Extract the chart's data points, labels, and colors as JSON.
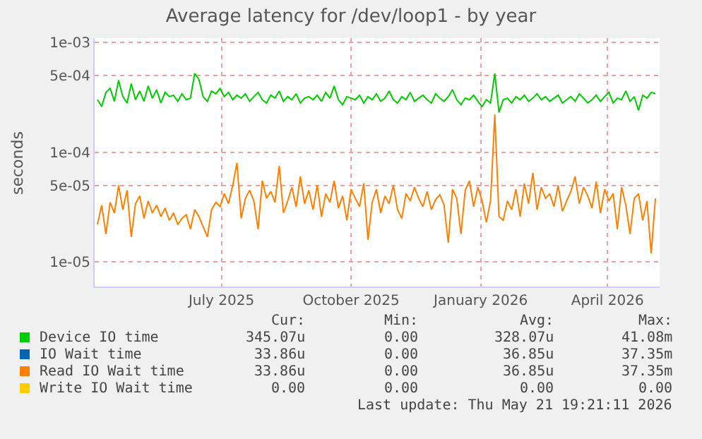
{
  "chart_data": {
    "type": "line",
    "title": "Average latency for /dev/loop1 - by year",
    "ylabel": "seconds",
    "log": "y",
    "grid": true,
    "legend": "bottom",
    "marker": "none",
    "line_style": "solid",
    "xlim": [
      "2025-04-02",
      "2026-05-08"
    ],
    "xticks": [
      {
        "value": "2025-07-01",
        "label": "July 2025"
      },
      {
        "value": "2025-10-01",
        "label": "October 2025"
      },
      {
        "value": "2026-01-01",
        "label": "January 2026"
      },
      {
        "value": "2026-04-01",
        "label": "April 2026"
      }
    ],
    "ylim": [
      6e-06,
      0.00109
    ],
    "yticks": [
      {
        "value": 1e-05,
        "label": "1e-05"
      },
      {
        "value": 5e-05,
        "label": "5e-05"
      },
      {
        "value": 0.0001,
        "label": "1e-04"
      },
      {
        "value": 0.0005,
        "label": "5e-04"
      },
      {
        "value": 0.001,
        "label": "1e-03"
      }
    ],
    "x": [
      "2025-04-04",
      "2025-04-07",
      "2025-04-10",
      "2025-04-13",
      "2025-04-16",
      "2025-04-19",
      "2025-04-22",
      "2025-04-25",
      "2025-04-28",
      "2025-05-01",
      "2025-05-04",
      "2025-05-07",
      "2025-05-10",
      "2025-05-13",
      "2025-05-16",
      "2025-05-19",
      "2025-05-22",
      "2025-05-25",
      "2025-05-28",
      "2025-05-31",
      "2025-06-03",
      "2025-06-06",
      "2025-06-09",
      "2025-06-12",
      "2025-06-15",
      "2025-06-18",
      "2025-06-21",
      "2025-06-24",
      "2025-06-27",
      "2025-06-30",
      "2025-07-03",
      "2025-07-06",
      "2025-07-09",
      "2025-07-12",
      "2025-07-15",
      "2025-07-18",
      "2025-07-21",
      "2025-07-24",
      "2025-07-27",
      "2025-07-30",
      "2025-08-02",
      "2025-08-05",
      "2025-08-08",
      "2025-08-11",
      "2025-08-14",
      "2025-08-17",
      "2025-08-20",
      "2025-08-23",
      "2025-08-26",
      "2025-08-29",
      "2025-09-01",
      "2025-09-04",
      "2025-09-07",
      "2025-09-10",
      "2025-09-13",
      "2025-09-16",
      "2025-09-19",
      "2025-09-22",
      "2025-09-25",
      "2025-09-28",
      "2025-10-01",
      "2025-10-04",
      "2025-10-07",
      "2025-10-10",
      "2025-10-13",
      "2025-10-16",
      "2025-10-19",
      "2025-10-22",
      "2025-10-25",
      "2025-10-28",
      "2025-10-31",
      "2025-11-03",
      "2025-11-06",
      "2025-11-09",
      "2025-11-12",
      "2025-11-15",
      "2025-11-18",
      "2025-11-21",
      "2025-11-24",
      "2025-11-27",
      "2025-11-30",
      "2025-12-03",
      "2025-12-06",
      "2025-12-09",
      "2025-12-12",
      "2025-12-15",
      "2025-12-18",
      "2025-12-21",
      "2025-12-24",
      "2025-12-27",
      "2025-12-30",
      "2026-01-02",
      "2026-01-05",
      "2026-01-08",
      "2026-01-11",
      "2026-01-14",
      "2026-01-17",
      "2026-01-20",
      "2026-01-23",
      "2026-01-26",
      "2026-01-29",
      "2026-02-01",
      "2026-02-04",
      "2026-02-07",
      "2026-02-10",
      "2026-02-13",
      "2026-02-16",
      "2026-02-19",
      "2026-02-22",
      "2026-02-25",
      "2026-02-28",
      "2026-03-03",
      "2026-03-06",
      "2026-03-09",
      "2026-03-12",
      "2026-03-15",
      "2026-03-18",
      "2026-03-21",
      "2026-03-24",
      "2026-03-27",
      "2026-03-30",
      "2026-04-02",
      "2026-04-05",
      "2026-04-08",
      "2026-04-11",
      "2026-04-14",
      "2026-04-17",
      "2026-04-20",
      "2026-04-23",
      "2026-04-26",
      "2026-04-29",
      "2026-05-02",
      "2026-05-05"
    ],
    "series": [
      {
        "name": "Device IO time",
        "color": "#00cc00",
        "values": [
          0.0003,
          0.00026,
          0.00035,
          0.00038,
          0.00029,
          0.00045,
          0.00032,
          0.00028,
          0.00042,
          0.0003,
          0.00036,
          0.00029,
          0.0004,
          0.00031,
          0.00037,
          0.00028,
          0.00035,
          0.00032,
          0.00033,
          0.00029,
          0.00034,
          0.0003,
          0.00031,
          0.00052,
          0.00046,
          0.00032,
          0.00029,
          0.00036,
          0.00034,
          0.00038,
          0.00032,
          0.00035,
          0.0003,
          0.00033,
          0.00031,
          0.00034,
          0.00029,
          0.00032,
          0.00035,
          0.0003,
          0.00028,
          0.00033,
          0.00031,
          0.00036,
          0.00029,
          0.00032,
          0.0003,
          0.00034,
          0.00028,
          0.00031,
          0.00032,
          0.0003,
          0.00033,
          0.00029,
          0.00035,
          0.00031,
          0.0004,
          0.0003,
          0.00027,
          0.00032,
          0.00031,
          0.0003,
          0.00033,
          0.00028,
          0.00032,
          0.0003,
          0.00034,
          0.00029,
          0.00031,
          0.00036,
          0.0003,
          0.00028,
          0.00032,
          0.0003,
          0.00035,
          0.00029,
          0.00031,
          0.00033,
          0.0003,
          0.00028,
          0.00034,
          0.00031,
          0.00029,
          0.00032,
          0.00037,
          0.0003,
          0.00027,
          0.00031,
          0.0003,
          0.00033,
          0.00029,
          0.00026,
          0.0003,
          0.00028,
          0.00052,
          0.00023,
          0.0003,
          0.00031,
          0.00028,
          0.00032,
          0.0003,
          0.00033,
          0.00029,
          0.00031,
          0.00034,
          0.0003,
          0.00032,
          0.00029,
          0.00031,
          0.00033,
          0.00028,
          0.0003,
          0.00032,
          0.00029,
          0.00034,
          0.00031,
          0.00028,
          0.0003,
          0.00033,
          0.00029,
          0.00032,
          0.00035,
          0.00028,
          0.00031,
          0.0003,
          0.00036,
          0.00029,
          0.00032,
          0.00024,
          0.00033,
          0.00031,
          0.00035,
          0.00034
        ]
      },
      {
        "name": "IO Wait time",
        "color": "#0066b3",
        "values": [
          null,
          null,
          null,
          null,
          null,
          null,
          null,
          null,
          null,
          null,
          null,
          null,
          null,
          null,
          null,
          null,
          null,
          null,
          null,
          null,
          null,
          null,
          null,
          null,
          null,
          null,
          null,
          null,
          null,
          null,
          null,
          null,
          null,
          null,
          null,
          null,
          null,
          null,
          null,
          null,
          null,
          null,
          null,
          null,
          null,
          null,
          null,
          null,
          null,
          null,
          null,
          null,
          null,
          null,
          null,
          null,
          null,
          null,
          null,
          null,
          null,
          null,
          null,
          null,
          null,
          null,
          null,
          null,
          null,
          null,
          null,
          null,
          null,
          null,
          null,
          null,
          null,
          null,
          null,
          null,
          null,
          null,
          null,
          null,
          null,
          null,
          null,
          null,
          null,
          null,
          null,
          null,
          null,
          null,
          null,
          null,
          null,
          null,
          null,
          null,
          null,
          null,
          null,
          null,
          null,
          null,
          null,
          null,
          null,
          null,
          null,
          null,
          null,
          null,
          null,
          null,
          null,
          null,
          null,
          null,
          null,
          null,
          null,
          null,
          null,
          null,
          null,
          null,
          null,
          null,
          null,
          null,
          null
        ]
      },
      {
        "name": "Read IO Wait time",
        "color": "#ff8000",
        "values": [
          2.2e-05,
          3.3e-05,
          1.8e-05,
          3.5e-05,
          2.8e-05,
          5e-05,
          3e-05,
          4.5e-05,
          1.7e-05,
          3.4e-05,
          4e-05,
          2.5e-05,
          3.6e-05,
          2.8e-05,
          3.3e-05,
          2.6e-05,
          3.1e-05,
          2.4e-05,
          2.8e-05,
          2.2e-05,
          2.5e-05,
          2.7e-05,
          2e-05,
          3e-05,
          2.6e-05,
          2.1e-05,
          1.7e-05,
          3e-05,
          3.5e-05,
          3.2e-05,
          4.2e-05,
          3.4e-05,
          5e-05,
          8e-05,
          2.5e-05,
          3.8e-05,
          4.5e-05,
          3.6e-05,
          2e-05,
          5.5e-05,
          3.8e-05,
          4.4e-05,
          3.5e-05,
          7.5e-05,
          2.8e-05,
          3.6e-05,
          4.8e-05,
          3.2e-05,
          6e-05,
          3.4e-05,
          4.5e-05,
          3e-05,
          5e-05,
          2.6e-05,
          4.2e-05,
          3.5e-05,
          5.5e-05,
          3.1e-05,
          4e-05,
          2.4e-05,
          4.6e-05,
          3.8e-05,
          3.2e-05,
          5.2e-05,
          1.6e-05,
          3.5e-05,
          4.6e-05,
          2.8e-05,
          4e-05,
          3.4e-05,
          5e-05,
          3e-05,
          2.5e-05,
          4.2e-05,
          3.6e-05,
          4.8e-05,
          3.8e-05,
          3.2e-05,
          4.4e-05,
          3e-05,
          3.7e-05,
          4.1e-05,
          3.3e-05,
          1.5e-05,
          4.6e-05,
          3.8e-05,
          1.8e-05,
          4.5e-05,
          5.5e-05,
          3.2e-05,
          4.8e-05,
          3.6e-05,
          2.3e-05,
          3.6e-05,
          0.00022,
          2.6e-05,
          2.4e-05,
          3.6e-05,
          3e-05,
          4.6e-05,
          2.6e-05,
          5.2e-05,
          3.4e-05,
          6.5e-05,
          3e-05,
          4.8e-05,
          3.8e-05,
          4.2e-05,
          3.2e-05,
          5e-05,
          2.9e-05,
          3.6e-05,
          4.4e-05,
          6e-05,
          3.4e-05,
          4.8e-05,
          4e-05,
          3.1e-05,
          5.4e-05,
          2.8e-05,
          4.6e-05,
          3.6e-05,
          4.2e-05,
          2e-05,
          4.8e-05,
          3.3e-05,
          1.8e-05,
          3.8e-05,
          4.2e-05,
          2.4e-05,
          3.6e-05,
          1.2e-05,
          3.8e-05
        ]
      },
      {
        "name": "Write IO Wait time",
        "color": "#ffcc00",
        "values": [
          null,
          null,
          null,
          null,
          null,
          null,
          null,
          null,
          null,
          null,
          null,
          null,
          null,
          null,
          null,
          null,
          null,
          null,
          null,
          null,
          null,
          null,
          null,
          null,
          null,
          null,
          null,
          null,
          null,
          null,
          null,
          null,
          null,
          null,
          null,
          null,
          null,
          null,
          null,
          null,
          null,
          null,
          null,
          null,
          null,
          null,
          null,
          null,
          null,
          null,
          null,
          null,
          null,
          null,
          null,
          null,
          null,
          null,
          null,
          null,
          null,
          null,
          null,
          null,
          null,
          null,
          null,
          null,
          null,
          null,
          null,
          null,
          null,
          null,
          null,
          null,
          null,
          null,
          null,
          null,
          null,
          null,
          null,
          null,
          null,
          null,
          null,
          null,
          null,
          null,
          null,
          null,
          null,
          null,
          null,
          null,
          null,
          null,
          null,
          null,
          null,
          null,
          null,
          null,
          null,
          null,
          null,
          null,
          null,
          null,
          null,
          null,
          null,
          null,
          null,
          null,
          null,
          null,
          null,
          null,
          null,
          null,
          null,
          null,
          null,
          null,
          null,
          null,
          null,
          null,
          null,
          null,
          null
        ]
      }
    ],
    "annotations": [
      "Cur:",
      "Min:",
      "Avg:",
      "Max:",
      "345.07u",
      "0.00",
      "328.07u",
      "41.08m",
      "33.86u",
      "0.00",
      "36.85u",
      "37.35m",
      "33.86u",
      "0.00",
      "36.85u",
      "37.35m",
      "0.00",
      "0.00",
      "0.00",
      "0.00",
      "Last update: Thu May 21 19:21:11 2026"
    ]
  }
}
